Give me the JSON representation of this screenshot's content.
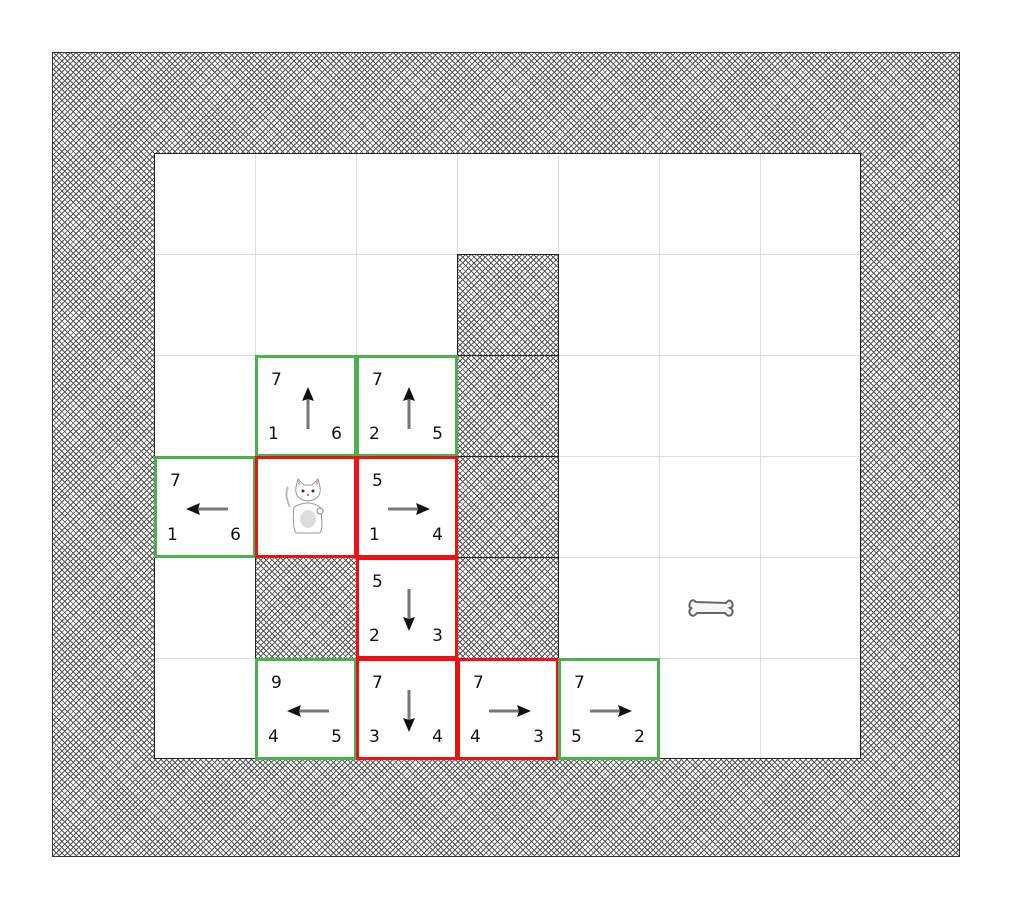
{
  "grid": {
    "columns": 7,
    "rows": 6
  },
  "colors": {
    "open": "#4caf50",
    "closed": "#ee1111",
    "arrow_shaft": "#777777",
    "arrow_head": "#111111",
    "grid_line": "#dddddd"
  },
  "walls": [
    {
      "col": 3,
      "row": 1
    },
    {
      "col": 3,
      "row": 2
    },
    {
      "col": 3,
      "row": 3
    },
    {
      "col": 3,
      "row": 4
    },
    {
      "col": 1,
      "row": 4
    }
  ],
  "cells": [
    {
      "col": 1,
      "row": 2,
      "f": "7",
      "g": "1",
      "h": "6",
      "dir": "up",
      "state": "open"
    },
    {
      "col": 2,
      "row": 2,
      "f": "7",
      "g": "2",
      "h": "5",
      "dir": "up",
      "state": "open"
    },
    {
      "col": 0,
      "row": 3,
      "f": "7",
      "g": "1",
      "h": "6",
      "dir": "left",
      "state": "open"
    },
    {
      "col": 1,
      "row": 3,
      "f": "",
      "g": "",
      "h": "",
      "dir": "",
      "state": "closed",
      "icon": "cat-icon"
    },
    {
      "col": 2,
      "row": 3,
      "f": "5",
      "g": "1",
      "h": "4",
      "dir": "right",
      "state": "closed"
    },
    {
      "col": 2,
      "row": 4,
      "f": "5",
      "g": "2",
      "h": "3",
      "dir": "down",
      "state": "closed"
    },
    {
      "col": 1,
      "row": 5,
      "f": "9",
      "g": "4",
      "h": "5",
      "dir": "left",
      "state": "open"
    },
    {
      "col": 2,
      "row": 5,
      "f": "7",
      "g": "3",
      "h": "4",
      "dir": "down",
      "state": "closed"
    },
    {
      "col": 3,
      "row": 5,
      "f": "7",
      "g": "4",
      "h": "3",
      "dir": "right",
      "state": "closed"
    },
    {
      "col": 4,
      "row": 5,
      "f": "7",
      "g": "5",
      "h": "2",
      "dir": "right",
      "state": "open"
    }
  ],
  "goal": {
    "col": 5,
    "row": 4,
    "icon": "bone-icon"
  }
}
